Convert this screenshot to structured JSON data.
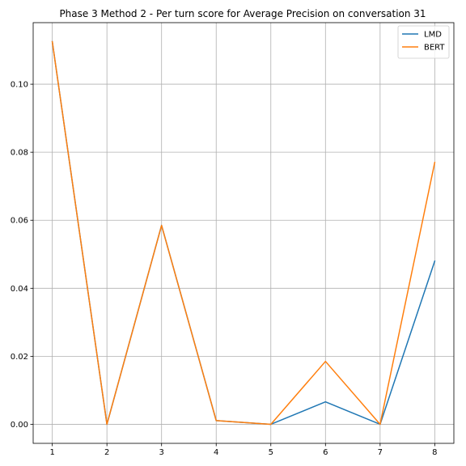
{
  "chart_data": {
    "type": "line",
    "title": "Phase 3 Method 2 - Per turn score for Average Precision on conversation 31",
    "xlabel": "",
    "ylabel": "",
    "x": [
      1,
      2,
      3,
      4,
      5,
      6,
      7,
      8
    ],
    "x_ticks": [
      "1",
      "2",
      "3",
      "4",
      "5",
      "6",
      "7",
      "8"
    ],
    "xlim": [
      0.65,
      8.35
    ],
    "ylim": [
      -0.0056,
      0.1181
    ],
    "y_ticks": [
      "0.00",
      "0.02",
      "0.04",
      "0.06",
      "0.08",
      "0.10"
    ],
    "y_tick_values": [
      0,
      0.02,
      0.04,
      0.06,
      0.08,
      0.1
    ],
    "grid": true,
    "legend_position": "upper right",
    "series": [
      {
        "name": "LMD",
        "color": "#1f77b4",
        "values": [
          0.1125,
          0.0,
          0.0585,
          0.0011,
          0.0,
          0.0066,
          0.0,
          0.048
        ]
      },
      {
        "name": "BERT",
        "color": "#ff7f0e",
        "values": [
          0.1125,
          0.0,
          0.0585,
          0.0011,
          0.0,
          0.0185,
          0.0,
          0.077
        ]
      }
    ]
  }
}
